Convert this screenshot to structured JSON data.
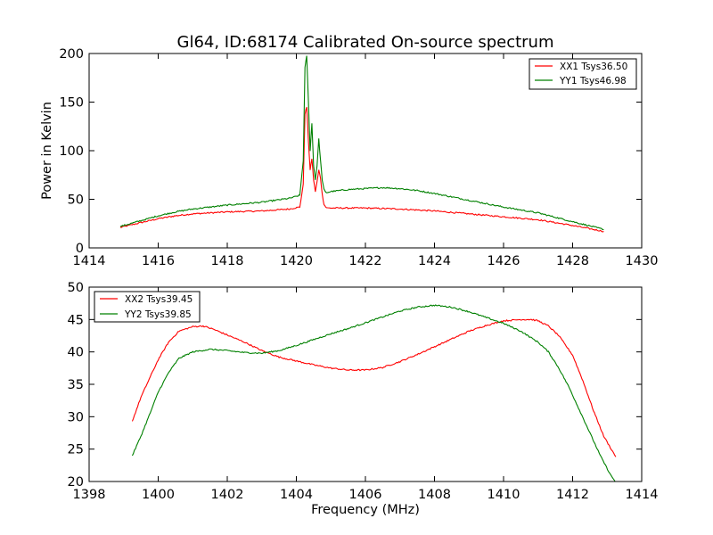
{
  "chart_data": [
    {
      "type": "line",
      "title": "Gl64, ID:68174 Calibrated On-source spectrum",
      "xlabel": "",
      "ylabel": "Power in Kelvin",
      "xlim": [
        1414,
        1430
      ],
      "ylim": [
        0,
        200
      ],
      "xticks": [
        1414,
        1416,
        1418,
        1420,
        1422,
        1424,
        1426,
        1428,
        1430
      ],
      "yticks": [
        0,
        50,
        100,
        150,
        200
      ],
      "grid": false,
      "legend_position": "top-right",
      "series": [
        {
          "name": "XX1 Tsys36.50",
          "color": "#ff0000",
          "x": [
            1414.9,
            1415.5,
            1416.0,
            1416.5,
            1417.0,
            1418.0,
            1419.0,
            1419.8,
            1420.1,
            1420.2,
            1420.25,
            1420.3,
            1420.35,
            1420.4,
            1420.45,
            1420.5,
            1420.55,
            1420.6,
            1420.65,
            1420.7,
            1420.75,
            1420.8,
            1420.85,
            1420.9,
            1421.0,
            1421.5,
            1422.0,
            1423.0,
            1424.0,
            1425.0,
            1426.0,
            1427.0,
            1428.0,
            1428.9
          ],
          "values": [
            21,
            26,
            30,
            33,
            35,
            37,
            38,
            40,
            42,
            65,
            138,
            145,
            110,
            80,
            92,
            70,
            58,
            68,
            80,
            72,
            55,
            45,
            42,
            41,
            41,
            41,
            41,
            40,
            38,
            35,
            32,
            29,
            23,
            17
          ]
        },
        {
          "name": "YY1 Tsys46.98",
          "color": "#008000",
          "x": [
            1414.9,
            1415.5,
            1416.0,
            1416.5,
            1417.0,
            1418.0,
            1419.0,
            1419.8,
            1420.1,
            1420.2,
            1420.25,
            1420.3,
            1420.35,
            1420.4,
            1420.45,
            1420.5,
            1420.55,
            1420.6,
            1420.65,
            1420.7,
            1420.75,
            1420.8,
            1420.85,
            1420.9,
            1421.0,
            1421.5,
            1422.0,
            1422.5,
            1423.0,
            1423.5,
            1424.0,
            1425.0,
            1426.0,
            1427.0,
            1428.0,
            1428.9
          ],
          "values": [
            22,
            28,
            33,
            37,
            40,
            44,
            47,
            51,
            54,
            90,
            185,
            198,
            150,
            100,
            128,
            85,
            70,
            85,
            112,
            90,
            70,
            60,
            57,
            57,
            58,
            60,
            61,
            62,
            61,
            59,
            56,
            49,
            42,
            36,
            27,
            19
          ]
        }
      ]
    },
    {
      "type": "line",
      "title": "",
      "xlabel": "Frequency (MHz)",
      "ylabel": "",
      "xlim": [
        1398,
        1414
      ],
      "ylim": [
        20,
        50
      ],
      "xticks": [
        1398,
        1400,
        1402,
        1404,
        1406,
        1408,
        1410,
        1412,
        1414
      ],
      "yticks": [
        20,
        25,
        30,
        35,
        40,
        45,
        50
      ],
      "grid": false,
      "legend_position": "top-left",
      "series": [
        {
          "name": "XX2 Tsys39.45",
          "color": "#ff0000",
          "x": [
            1399.25,
            1399.5,
            1399.8,
            1400.0,
            1400.3,
            1400.6,
            1401.0,
            1401.3,
            1401.6,
            1402.0,
            1402.5,
            1403.0,
            1403.5,
            1404.0,
            1404.5,
            1405.0,
            1405.5,
            1406.0,
            1406.5,
            1407.0,
            1407.5,
            1408.0,
            1408.5,
            1409.0,
            1409.5,
            1410.0,
            1410.5,
            1410.8,
            1411.0,
            1411.3,
            1411.6,
            1412.0,
            1412.3,
            1412.6,
            1412.9,
            1413.25
          ],
          "values": [
            29.3,
            33.0,
            36.5,
            38.8,
            41.5,
            43.2,
            43.9,
            44.0,
            43.5,
            42.6,
            41.5,
            40.2,
            39.2,
            38.6,
            38.0,
            37.5,
            37.2,
            37.2,
            37.6,
            38.5,
            39.6,
            40.8,
            42.0,
            43.2,
            44.1,
            44.8,
            45.0,
            45.0,
            44.8,
            44.0,
            42.5,
            39.5,
            35.5,
            31.0,
            27.0,
            23.8
          ]
        },
        {
          "name": "YY2 Tsys39.85",
          "color": "#008000",
          "x": [
            1399.25,
            1399.5,
            1399.8,
            1400.0,
            1400.3,
            1400.6,
            1401.0,
            1401.5,
            1402.0,
            1402.5,
            1403.0,
            1403.5,
            1404.0,
            1404.5,
            1405.0,
            1405.5,
            1406.0,
            1406.5,
            1407.0,
            1407.5,
            1408.0,
            1408.5,
            1409.0,
            1409.5,
            1410.0,
            1410.5,
            1411.0,
            1411.3,
            1411.6,
            1411.9,
            1412.2,
            1412.5,
            1412.8,
            1413.1,
            1413.3
          ],
          "values": [
            24.0,
            27.0,
            31.0,
            33.8,
            36.8,
            39.0,
            40.0,
            40.4,
            40.2,
            39.9,
            39.8,
            40.2,
            41.0,
            41.9,
            42.8,
            43.6,
            44.5,
            45.4,
            46.3,
            46.9,
            47.2,
            46.9,
            46.2,
            45.3,
            44.4,
            43.2,
            41.5,
            40.0,
            37.5,
            34.5,
            31.0,
            27.5,
            24.0,
            21.0,
            19.5
          ]
        }
      ]
    }
  ]
}
